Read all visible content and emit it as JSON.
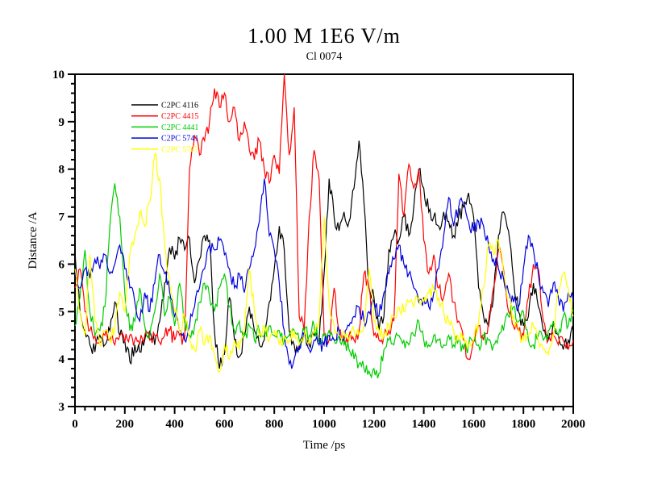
{
  "figure": {
    "title": "1.00 M 1E6 V/m",
    "subtitle": "Cl 0074"
  },
  "chart_data": {
    "type": "line",
    "title": "1.00 M 1E6 V/m",
    "subtitle": "Cl 0074",
    "xlabel": "Time /ps",
    "ylabel": "Distance /A",
    "xlim": [
      0,
      2000
    ],
    "ylim": [
      3,
      10
    ],
    "grid": false,
    "legend_position": "upper-left-inside",
    "x_major_step": 200,
    "x_minor_step": 40,
    "y_major_step": 1,
    "y_minor_step": 0.2,
    "x_tick_labels": [
      "0",
      "200",
      "400",
      "600",
      "800",
      "1000",
      "1200",
      "1400",
      "1600",
      "1800",
      "2000"
    ],
    "y_tick_labels": [
      "3",
      "4",
      "5",
      "6",
      "7",
      "8",
      "9",
      "10"
    ],
    "x_start": 0,
    "x_step": 20,
    "series": [
      {
        "name": "C2PC 4116",
        "color": "#000000",
        "values": [
          6.25,
          5.0,
          4.6,
          4.3,
          4.15,
          4.5,
          4.3,
          4.6,
          5.2,
          4.5,
          4.4,
          3.95,
          4.3,
          4.15,
          4.4,
          4.6,
          4.3,
          4.8,
          5.6,
          6.35,
          6.1,
          6.55,
          6.3,
          6.55,
          5.6,
          6.1,
          6.6,
          6.5,
          4.6,
          3.8,
          4.1,
          5.3,
          4.4,
          4.05,
          4.5,
          5.1,
          4.6,
          4.3,
          4.4,
          5.2,
          5.9,
          6.8,
          6.3,
          4.6,
          4.3,
          4.2,
          4.55,
          4.3,
          4.5,
          4.4,
          5.8,
          7.8,
          7.0,
          6.7,
          7.1,
          6.9,
          7.6,
          8.6,
          7.3,
          5.5,
          5.3,
          4.6,
          4.9,
          6.3,
          6.6,
          6.5,
          7.0,
          6.6,
          7.2,
          8.0,
          7.6,
          7.1,
          7.0,
          6.8,
          7.1,
          6.9,
          6.6,
          7.0,
          7.2,
          7.5,
          7.0,
          5.5,
          4.9,
          4.7,
          5.3,
          6.6,
          7.1,
          6.7,
          5.7,
          5.0,
          4.7,
          4.9,
          5.6,
          5.1,
          4.6,
          4.4,
          4.8,
          4.5,
          4.2,
          4.4,
          4.6
        ]
      },
      {
        "name": "C2PC 4415",
        "color": "#ff0000",
        "values": [
          5.5,
          5.9,
          5.0,
          4.6,
          4.5,
          4.35,
          4.5,
          4.4,
          4.3,
          4.5,
          4.35,
          4.5,
          4.4,
          4.3,
          4.5,
          4.4,
          4.5,
          4.35,
          4.5,
          4.6,
          4.4,
          4.5,
          4.4,
          8.0,
          8.7,
          8.3,
          8.6,
          9.0,
          9.7,
          9.3,
          9.6,
          9.0,
          9.3,
          8.6,
          9.0,
          8.4,
          8.2,
          8.6,
          8.0,
          7.7,
          8.3,
          7.9,
          10.0,
          8.3,
          9.3,
          4.9,
          4.6,
          7.0,
          8.4,
          7.8,
          4.5,
          4.4,
          5.5,
          4.6,
          4.4,
          4.5,
          4.4,
          4.6,
          5.8,
          5.5,
          4.5,
          4.4,
          4.5,
          4.6,
          4.8,
          7.9,
          7.0,
          8.1,
          7.6,
          8.0,
          6.5,
          5.8,
          6.2,
          5.5,
          5.3,
          5.8,
          5.2,
          4.8,
          4.4,
          4.0,
          4.4,
          4.7,
          4.4,
          4.8,
          5.5,
          6.3,
          5.9,
          5.0,
          4.7,
          4.6,
          4.5,
          5.3,
          6.0,
          5.9,
          4.8,
          4.4,
          4.5,
          4.3,
          4.4,
          4.2,
          4.4
        ]
      },
      {
        "name": "C2PC 4441",
        "color": "#00cc00",
        "values": [
          4.7,
          5.3,
          6.3,
          5.0,
          4.5,
          4.6,
          5.1,
          6.8,
          7.7,
          7.0,
          5.4,
          4.6,
          4.8,
          5.5,
          4.7,
          4.5,
          5.0,
          5.8,
          4.9,
          5.3,
          4.7,
          5.6,
          4.8,
          4.5,
          4.7,
          5.2,
          5.6,
          5.3,
          5.0,
          5.5,
          5.8,
          5.1,
          4.6,
          4.8,
          4.5,
          4.7,
          4.4,
          4.6,
          4.5,
          4.7,
          4.5,
          4.6,
          4.4,
          4.5,
          4.6,
          4.4,
          4.6,
          4.5,
          4.7,
          4.4,
          4.5,
          4.6,
          4.4,
          4.5,
          4.3,
          4.2,
          4.0,
          3.9,
          3.8,
          3.75,
          3.8,
          3.7,
          4.2,
          4.4,
          4.3,
          4.5,
          4.4,
          4.3,
          4.5,
          4.8,
          4.4,
          4.3,
          4.5,
          4.4,
          4.3,
          4.5,
          4.3,
          4.4,
          4.2,
          4.3,
          4.4,
          4.3,
          4.5,
          4.4,
          4.3,
          4.5,
          4.6,
          4.9,
          5.1,
          4.8,
          5.0,
          4.4,
          4.3,
          4.5,
          4.4,
          4.6,
          4.8,
          4.5,
          4.9,
          4.7,
          5.0
        ]
      },
      {
        "name": "C2PC 5741",
        "color": "#0000dd",
        "values": [
          5.8,
          5.5,
          5.9,
          5.7,
          6.1,
          5.9,
          6.2,
          5.8,
          6.0,
          6.4,
          5.9,
          5.5,
          5.2,
          4.8,
          5.4,
          5.0,
          5.6,
          6.2,
          5.8,
          5.4,
          4.9,
          4.6,
          4.4,
          4.7,
          5.1,
          5.5,
          5.9,
          6.4,
          6.3,
          6.5,
          6.2,
          5.9,
          5.5,
          5.8,
          5.4,
          5.9,
          6.3,
          6.9,
          7.8,
          6.6,
          6.3,
          5.6,
          4.6,
          3.9,
          4.0,
          4.3,
          4.5,
          4.2,
          4.4,
          4.3,
          4.3,
          4.5,
          4.4,
          4.6,
          4.4,
          4.7,
          4.9,
          5.1,
          4.8,
          5.0,
          5.2,
          4.9,
          5.4,
          5.8,
          6.1,
          6.4,
          6.0,
          5.8,
          5.5,
          5.2,
          5.3,
          5.1,
          5.4,
          5.9,
          6.6,
          7.4,
          6.8,
          7.2,
          7.3,
          6.9,
          6.7,
          6.9,
          6.8,
          6.4,
          6.1,
          5.9,
          5.7,
          5.4,
          5.2,
          5.1,
          5.9,
          6.6,
          6.3,
          5.8,
          5.4,
          5.1,
          5.6,
          5.3,
          5.0,
          5.4,
          5.2
        ]
      },
      {
        "name": "C2PC 5767",
        "color": "#ffff00",
        "values": [
          5.9,
          5.0,
          4.5,
          6.2,
          4.8,
          4.3,
          4.6,
          4.4,
          4.7,
          5.4,
          5.0,
          6.2,
          6.6,
          7.1,
          6.8,
          7.3,
          8.3,
          7.8,
          6.4,
          5.6,
          5.0,
          4.6,
          4.9,
          4.4,
          4.2,
          4.6,
          4.3,
          4.5,
          4.1,
          3.75,
          4.3,
          4.0,
          4.4,
          4.2,
          4.6,
          5.9,
          5.0,
          4.5,
          4.7,
          4.4,
          4.6,
          4.3,
          4.5,
          4.4,
          4.6,
          4.3,
          4.5,
          4.4,
          4.6,
          4.8,
          7.0,
          5.2,
          4.7,
          4.5,
          4.6,
          4.4,
          4.6,
          4.5,
          4.7,
          5.9,
          4.8,
          4.6,
          4.5,
          4.7,
          4.9,
          5.1,
          5.0,
          5.2,
          5.1,
          5.3,
          5.2,
          5.4,
          5.5,
          5.3,
          5.0,
          4.8,
          4.6,
          4.4,
          4.5,
          4.3,
          4.4,
          4.8,
          5.5,
          6.4,
          6.2,
          6.5,
          5.8,
          5.3,
          4.9,
          4.6,
          4.4,
          4.5,
          4.7,
          4.4,
          4.2,
          4.1,
          4.5,
          5.4,
          5.8,
          5.5,
          4.9
        ]
      }
    ]
  }
}
